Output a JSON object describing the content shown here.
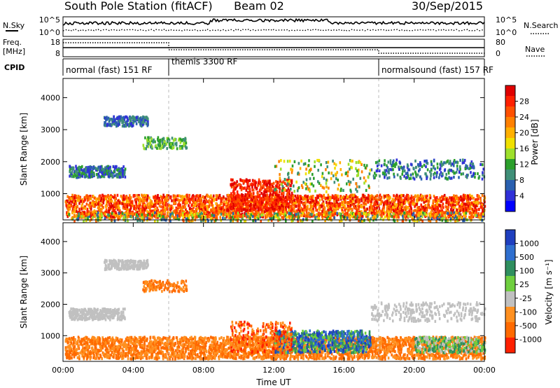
{
  "header": {
    "station": "South Pole Station (fitACF)",
    "beam": "Beam 02",
    "date": "30/Sep/2015"
  },
  "params": {
    "nsky_label": "N.Sky",
    "nsearch_label": "N.Search",
    "freq_label_1": "Freq.",
    "freq_label_2": "[MHz]",
    "nave_label": "Nave",
    "cpid_label": "CPID",
    "nsky_ticks": [
      "10^5",
      "10^0"
    ],
    "nsearch_ticks": [
      "10^5",
      "10^0"
    ],
    "freq_ticks": [
      "18",
      "8"
    ],
    "nave_ticks": [
      "80",
      "0"
    ]
  },
  "cpid_segments": [
    {
      "label": "normal (fast) 151 RF",
      "start": 0,
      "end": 6
    },
    {
      "label": "themis 3300 RF",
      "start": 6,
      "end": 18
    },
    {
      "label": "normalsound (fast) 157 RF",
      "start": 18,
      "end": 24
    }
  ],
  "chart_data": [
    {
      "type": "heatmap",
      "name": "power",
      "xlabel": "",
      "ylabel": "Slant Range [km]",
      "xlim": [
        0,
        24
      ],
      "ylim": [
        180,
        4600
      ],
      "y_ticks": [
        1000,
        2000,
        3000,
        4000
      ],
      "colorbar_label": "Power [dB]",
      "colorbar_ticks": [
        "4",
        "8",
        "12",
        "16",
        "20",
        "24",
        "28"
      ],
      "colors": [
        "#0000ff",
        "#3030d8",
        "#2a60b0",
        "#3f8f78",
        "#2ca02c",
        "#9ee02c",
        "#f0e000",
        "#ffb000",
        "#ff8000",
        "#ff5000",
        "#ff2000",
        "#e00000"
      ]
    },
    {
      "type": "heatmap",
      "name": "velocity",
      "xlabel": "Time UT",
      "ylabel": "Slant Range [km]",
      "xlim": [
        0,
        24
      ],
      "ylim": [
        180,
        4600
      ],
      "y_ticks": [
        1000,
        2000,
        3000,
        4000
      ],
      "x_ticks": [
        "00:00",
        "04:00",
        "08:00",
        "12:00",
        "16:00",
        "20:00",
        "00:00"
      ],
      "colorbar_label": "Velocity [m s⁻¹]",
      "colorbar_ticks": [
        "1000",
        "500",
        "100",
        "25",
        "-25",
        "-100",
        "-500",
        "-1000"
      ],
      "colors": [
        "#1f3fbf",
        "#2f6fcf",
        "#2f8f5f",
        "#6fcf3f",
        "#c0c0c0",
        "#ff9020",
        "#ff6a00",
        "#ff2000"
      ]
    }
  ]
}
